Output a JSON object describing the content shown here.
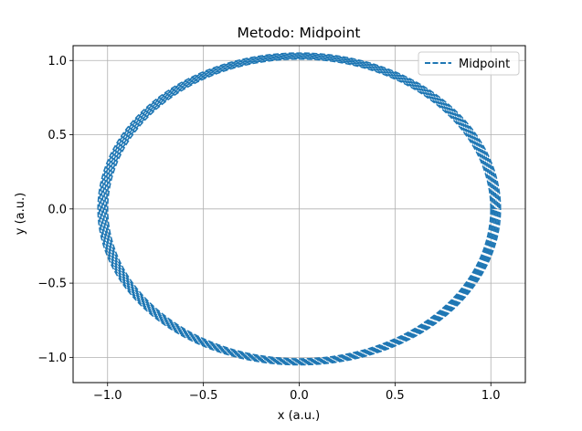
{
  "chart_data": {
    "type": "line",
    "title": "Metodo: Midpoint",
    "xlabel": "x (a.u.)",
    "ylabel": "y (a.u.)",
    "xlim": [
      -1.18,
      1.18
    ],
    "ylim": [
      -1.17,
      1.1
    ],
    "xticks": [
      -1.0,
      -0.5,
      0.0,
      0.5,
      1.0
    ],
    "xtick_labels": [
      "−1.0",
      "−0.5",
      "0.0",
      "0.5",
      "1.0"
    ],
    "yticks": [
      1.0,
      0.5,
      0.0,
      -0.5,
      -1.0
    ],
    "ytick_labels": [
      "1.0",
      "0.5",
      "0.0",
      "−0.5",
      "−1.0"
    ],
    "grid": true,
    "legend_position": "upper right",
    "series": [
      {
        "name": "Midpoint",
        "color": "#1f77b4",
        "linestyle": "dashed",
        "shape": "ellipse",
        "center": [
          0.0,
          0.0
        ],
        "x_radius_range": [
          1.0,
          1.05
        ],
        "y_radius_range": [
          1.01,
          1.05
        ]
      }
    ]
  }
}
